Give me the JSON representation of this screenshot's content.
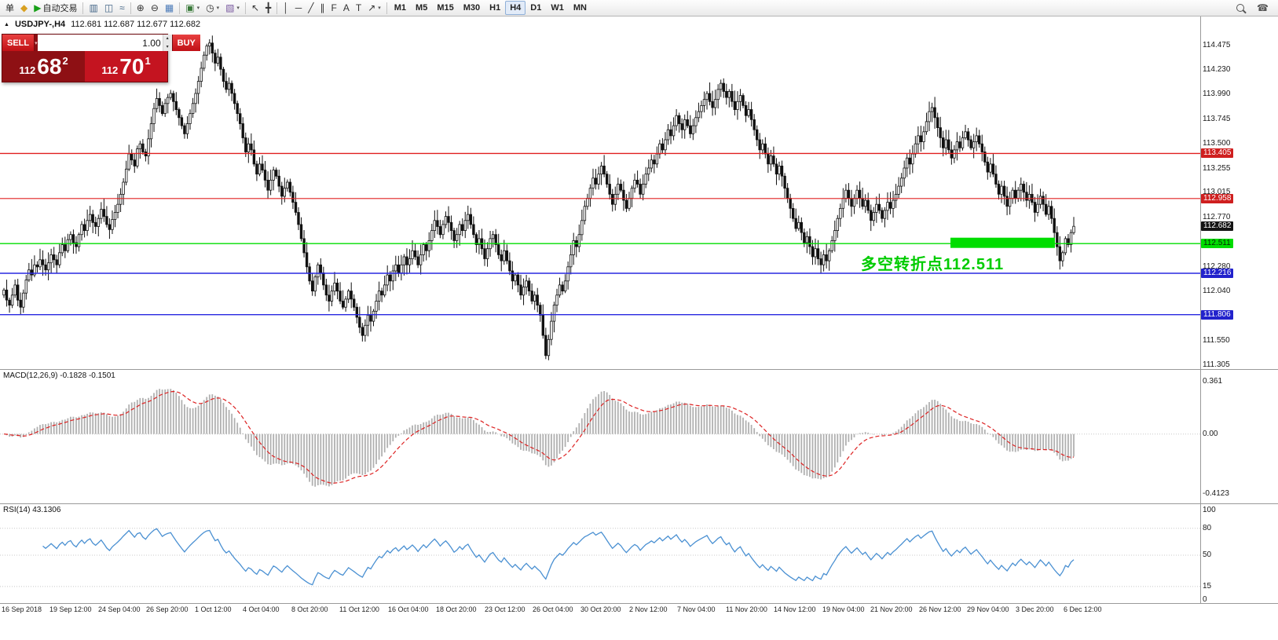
{
  "symbol": {
    "marker": "▲",
    "title": "USDJPY-,H4",
    "ohlc": "112.681 112.687 112.677 112.682"
  },
  "trade_panel": {
    "sell_label": "SELL",
    "buy_label": "BUY",
    "volume": "1.00",
    "sell_price": {
      "prefix": "112",
      "big": "68",
      "sup": "2"
    },
    "buy_price": {
      "prefix": "112",
      "big": "70",
      "sup": "1"
    }
  },
  "toolbar": {
    "items": [
      {
        "name": "order-button",
        "label": "单"
      },
      {
        "name": "charts-button",
        "icon": "◆",
        "icon_name": "diamond-icon",
        "color": "#d8a020"
      },
      {
        "name": "autotrading-button",
        "icon": "▶",
        "icon_name": "play-icon",
        "color": "#18a018",
        "label": "自动交易"
      },
      {
        "type": "sep"
      },
      {
        "name": "bar-chart-button",
        "icon": "▥",
        "icon_name": "bar-chart-icon",
        "color": "#446688"
      },
      {
        "name": "candlestick-chart-button",
        "icon": "◫",
        "icon_name": "candlestick-icon",
        "color": "#446688"
      },
      {
        "name": "line-chart-button",
        "icon": "≈",
        "icon_name": "line-chart-icon",
        "color": "#446688"
      },
      {
        "type": "sep"
      },
      {
        "name": "zoom-in-button",
        "icon": "⊕",
        "icon_name": "zoom-in-icon",
        "color": "#333333"
      },
      {
        "name": "zoom-out-button",
        "icon": "⊖",
        "icon_name": "zoom-out-icon",
        "color": "#333333"
      },
      {
        "name": "tile-windows-button",
        "icon": "▦",
        "icon_name": "tile-windows-icon",
        "color": "#4a7ab8"
      },
      {
        "type": "sep"
      },
      {
        "name": "new-chart-button",
        "icon": "▣",
        "icon_name": "new-chart-icon",
        "color": "#3a7a3a",
        "dropdown": true
      },
      {
        "name": "profiles-button",
        "icon": "◷",
        "icon_name": "clock-icon",
        "color": "#333333",
        "dropdown": true
      },
      {
        "name": "indicators-button",
        "icon": "▧",
        "icon_name": "indicators-icon",
        "color": "#7a5aa0",
        "dropdown": true
      },
      {
        "type": "sep"
      },
      {
        "name": "cursor-button",
        "icon": "↖",
        "icon_name": "cursor-icon",
        "color": "#333333"
      },
      {
        "name": "crosshair-button",
        "icon": "╋",
        "icon_name": "crosshair-icon",
        "color": "#333333"
      },
      {
        "type": "sep"
      },
      {
        "name": "vertical-line-button",
        "icon": "│",
        "icon_name": "vertical-line-icon",
        "color": "#333333"
      },
      {
        "name": "horizontal-line-button",
        "icon": "─",
        "icon_name": "horizontal-line-icon",
        "color": "#333333"
      },
      {
        "name": "trendline-button",
        "icon": "╱",
        "icon_name": "trendline-icon",
        "color": "#333333"
      },
      {
        "name": "channel-button",
        "icon": "∥",
        "icon_name": "channel-icon",
        "color": "#333333"
      },
      {
        "name": "fibonacci-button",
        "icon": "F",
        "icon_name": "fibonacci-icon",
        "color": "#333333"
      },
      {
        "name": "text-button",
        "icon": "A",
        "icon_name": "text-icon",
        "color": "#333333"
      },
      {
        "name": "label-button",
        "icon": "T",
        "icon_name": "label-icon",
        "color": "#333333"
      },
      {
        "name": "arrows-button",
        "icon": "↗",
        "icon_name": "arrow-icon",
        "color": "#333333",
        "dropdown": true
      },
      {
        "type": "sep"
      },
      {
        "name": "timeframe-m1-button",
        "label": "M1",
        "tf": true
      },
      {
        "name": "timeframe-m5-button",
        "label": "M5",
        "tf": true
      },
      {
        "name": "timeframe-m15-button",
        "label": "M15",
        "tf": true
      },
      {
        "name": "timeframe-m30-button",
        "label": "M30",
        "tf": true
      },
      {
        "name": "timeframe-h1-button",
        "label": "H1",
        "tf": true
      },
      {
        "name": "timeframe-h4-button",
        "label": "H4",
        "tf": true,
        "active": true
      },
      {
        "name": "timeframe-d1-button",
        "label": "D1",
        "tf": true
      },
      {
        "name": "timeframe-w1-button",
        "label": "W1",
        "tf": true
      },
      {
        "name": "timeframe-mn-button",
        "label": "MN",
        "tf": true
      }
    ],
    "right_items": [
      {
        "name": "search-button",
        "mag": true
      },
      {
        "name": "support-button",
        "icon": "☎",
        "icon_name": "phone-icon",
        "color": "#555555"
      }
    ]
  },
  "chart_data": {
    "type": "candlestick",
    "symbol": "USDJPY-",
    "timeframe": "H4",
    "current_price": "112.682",
    "y_axis": {
      "min": 111.305,
      "max": 114.475
    },
    "price_labels": [
      {
        "text": "114.475"
      },
      {
        "text": "114.230"
      },
      {
        "text": "113.990"
      },
      {
        "text": "113.745"
      },
      {
        "text": "113.500"
      },
      {
        "text": "113.405",
        "badge": "red"
      },
      {
        "text": "113.255"
      },
      {
        "text": "113.015"
      },
      {
        "text": "112.958",
        "badge": "red"
      },
      {
        "text": "112.770"
      },
      {
        "text": "112.682",
        "badge": "black"
      },
      {
        "text": "112.511",
        "badge": "green"
      },
      {
        "text": "112.280"
      },
      {
        "text": "112.216",
        "badge": "blue"
      },
      {
        "text": "112.040"
      },
      {
        "text": "111.806",
        "badge": "blue"
      },
      {
        "text": "111.550"
      },
      {
        "text": "111.305"
      }
    ],
    "h_lines": [
      {
        "value": 113.405,
        "color": "#e02020",
        "width": 1.4
      },
      {
        "value": 112.958,
        "color": "#e02020",
        "width": 1.2
      },
      {
        "value": 112.511,
        "color": "#00dd00",
        "width": 1.4
      },
      {
        "value": 112.216,
        "color": "#2828e0",
        "width": 1.4
      },
      {
        "value": 111.806,
        "color": "#2828e0",
        "width": 1.4
      }
    ],
    "highlight_bar": {
      "price": 112.511,
      "color": "#00dd00",
      "x_start_frac": 0.792,
      "x_end_frac": 0.879
    },
    "annotation": {
      "text": "多空转折点112.511",
      "color": "#00cc00"
    },
    "closes": [
      112.05,
      111.95,
      111.9,
      112.0,
      112.1,
      111.95,
      111.88,
      112.02,
      112.15,
      112.25,
      112.2,
      112.3,
      112.28,
      112.35,
      112.3,
      112.25,
      112.32,
      112.4,
      112.35,
      112.3,
      112.42,
      112.5,
      112.44,
      112.55,
      112.6,
      112.52,
      112.48,
      112.6,
      112.7,
      112.64,
      112.74,
      112.8,
      112.72,
      112.68,
      112.76,
      112.85,
      112.78,
      112.7,
      112.65,
      112.75,
      112.82,
      112.9,
      113.0,
      113.12,
      113.25,
      113.4,
      113.34,
      113.28,
      113.45,
      113.5,
      113.42,
      113.38,
      113.55,
      113.7,
      113.85,
      113.95,
      113.88,
      113.8,
      113.9,
      113.96,
      114.0,
      113.92,
      113.84,
      113.76,
      113.68,
      113.6,
      113.7,
      113.8,
      113.9,
      114.0,
      114.12,
      114.25,
      114.38,
      114.47,
      114.5,
      114.4,
      114.3,
      114.36,
      114.24,
      114.12,
      114.04,
      114.1,
      114.0,
      113.9,
      113.8,
      113.7,
      113.56,
      113.42,
      113.5,
      113.44,
      113.3,
      113.2,
      113.3,
      113.24,
      113.14,
      113.04,
      113.14,
      113.24,
      113.18,
      113.08,
      112.98,
      113.06,
      113.12,
      113.02,
      112.92,
      112.82,
      112.7,
      112.56,
      112.42,
      112.28,
      112.14,
      112.04,
      112.18,
      112.3,
      112.22,
      112.1,
      112.0,
      111.94,
      112.04,
      112.12,
      112.04,
      111.94,
      111.88,
      111.96,
      112.04,
      111.96,
      111.88,
      111.78,
      111.68,
      111.6,
      111.7,
      111.8,
      111.74,
      111.84,
      111.94,
      112.04,
      112.0,
      112.1,
      112.2,
      112.14,
      112.24,
      112.3,
      112.22,
      112.3,
      112.38,
      112.3,
      112.36,
      112.44,
      112.38,
      112.3,
      112.4,
      112.5,
      112.44,
      112.54,
      112.64,
      112.74,
      112.68,
      112.6,
      112.7,
      112.78,
      112.72,
      112.64,
      112.54,
      112.6,
      112.7,
      112.64,
      112.74,
      112.8,
      112.7,
      112.6,
      112.5,
      112.56,
      112.46,
      112.36,
      112.46,
      112.56,
      112.6,
      112.5,
      112.4,
      112.34,
      112.44,
      112.34,
      112.24,
      112.14,
      112.2,
      112.1,
      112.0,
      112.08,
      112.14,
      112.04,
      111.94,
      112.0,
      111.9,
      111.8,
      111.6,
      111.4,
      111.56,
      111.74,
      111.9,
      112.0,
      112.1,
      112.04,
      112.14,
      112.28,
      112.4,
      112.54,
      112.48,
      112.6,
      112.74,
      112.88,
      112.96,
      113.06,
      113.16,
      113.1,
      113.2,
      113.28,
      113.2,
      113.1,
      113.0,
      112.9,
      113.0,
      113.1,
      113.04,
      112.94,
      112.86,
      112.96,
      113.06,
      113.14,
      113.1,
      113.0,
      113.1,
      113.2,
      113.26,
      113.34,
      113.3,
      113.4,
      113.5,
      113.44,
      113.54,
      113.64,
      113.58,
      113.68,
      113.78,
      113.7,
      113.64,
      113.74,
      113.68,
      113.6,
      113.68,
      113.76,
      113.82,
      113.88,
      113.94,
      114.0,
      113.92,
      113.86,
      113.94,
      114.04,
      114.1,
      114.02,
      113.96,
      114.02,
      113.92,
      113.84,
      113.92,
      113.98,
      113.88,
      113.78,
      113.84,
      113.74,
      113.64,
      113.54,
      113.44,
      113.5,
      113.4,
      113.3,
      113.38,
      113.3,
      113.2,
      113.28,
      113.18,
      113.06,
      112.96,
      112.86,
      112.76,
      112.66,
      112.72,
      112.62,
      112.52,
      112.58,
      112.48,
      112.38,
      112.46,
      112.36,
      112.3,
      112.4,
      112.34,
      112.44,
      112.54,
      112.64,
      112.76,
      112.86,
      112.96,
      113.04,
      112.96,
      112.88,
      112.96,
      113.04,
      112.96,
      112.88,
      112.94,
      112.84,
      112.74,
      112.82,
      112.9,
      112.84,
      112.76,
      112.84,
      112.92,
      112.86,
      112.94,
      113.0,
      113.08,
      113.16,
      113.26,
      113.36,
      113.3,
      113.4,
      113.5,
      113.58,
      113.52,
      113.62,
      113.72,
      113.82,
      113.86,
      113.76,
      113.66,
      113.56,
      113.46,
      113.54,
      113.44,
      113.36,
      113.44,
      113.52,
      113.46,
      113.56,
      113.62,
      113.54,
      113.46,
      113.52,
      113.58,
      113.5,
      113.42,
      113.32,
      113.22,
      113.3,
      113.2,
      113.1,
      113.0,
      113.08,
      112.98,
      112.88,
      112.96,
      113.04,
      112.96,
      113.04,
      113.1,
      113.02,
      112.94,
      113.0,
      112.92,
      112.82,
      112.9,
      112.98,
      112.9,
      112.8,
      112.88,
      112.76,
      112.62,
      112.48,
      112.34,
      112.42,
      112.56,
      112.5,
      112.62,
      112.682
    ],
    "time_labels": [
      "16 Sep 2018",
      "19 Sep 12:00",
      "24 Sep 04:00",
      "26 Sep 20:00",
      "1 Oct 12:00",
      "4 Oct 04:00",
      "8 Oct 20:00",
      "11 Oct 12:00",
      "16 Oct 04:00",
      "18 Oct 20:00",
      "23 Oct 12:00",
      "26 Oct 04:00",
      "30 Oct 20:00",
      "2 Nov 12:00",
      "7 Nov 04:00",
      "11 Nov 20:00",
      "14 Nov 12:00",
      "19 Nov 04:00",
      "21 Nov 20:00",
      "26 Nov 12:00",
      "29 Nov 04:00",
      "3 Dec 20:00",
      "6 Dec 12:00"
    ],
    "indicators": [
      {
        "name": "MACD",
        "label": "MACD(12,26,9) -0.1828 -0.1501",
        "params": [
          12,
          26,
          9
        ],
        "values_text": [
          "-0.1828",
          "-0.1501"
        ],
        "axis": [
          {
            "text": "0.361",
            "value": 0.361
          },
          {
            "text": "0.00",
            "value": 0.0
          },
          {
            "text": "-0.4123",
            "value": -0.4123
          }
        ],
        "range": {
          "max": 0.44,
          "min": -0.47
        },
        "histogram_color": "#b0b0b0",
        "signal_color": "#dd2222"
      },
      {
        "name": "RSI",
        "label": "RSI(14) 43.1306",
        "period": 14,
        "value_text": "43.1306",
        "axis": [
          {
            "text": "100",
            "value": 100
          },
          {
            "text": "80",
            "value": 80
          },
          {
            "text": "50",
            "value": 50
          },
          {
            "text": "15",
            "value": 15
          },
          {
            "text": "0",
            "value": 0
          }
        ],
        "levels": [
          80,
          50,
          15
        ],
        "line_color": "#4a90d2"
      }
    ]
  }
}
